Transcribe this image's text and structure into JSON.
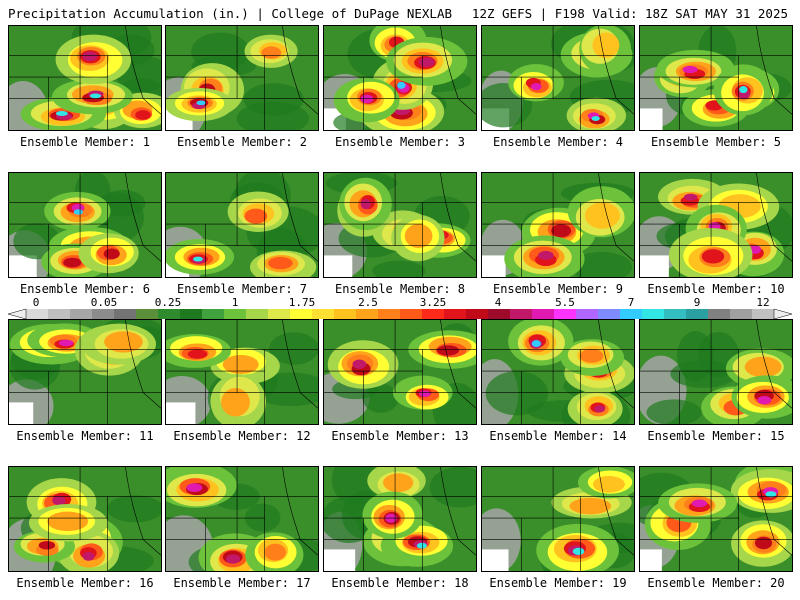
{
  "header": {
    "title": "Precipitation Accumulation (in.) | College of DuPage NEXLAB",
    "run_info": "12Z GEFS | F198 Valid: 18Z SAT MAY 31 2025"
  },
  "colorbar": {
    "labels": [
      "0",
      "0.05",
      "0.25",
      "1",
      "1.75",
      "2.5",
      "3.25",
      "4",
      "5.5",
      "7",
      "9",
      "12"
    ],
    "colors": [
      "#d9d9d9",
      "#bfbfbf",
      "#a6a6a6",
      "#8c8c8c",
      "#737373",
      "#5c8f3a",
      "#2e8b2e",
      "#1f7a1f",
      "#3fa23f",
      "#6cc23a",
      "#a6d64a",
      "#dfe84a",
      "#ffff33",
      "#ffe033",
      "#ffc21f",
      "#ffa31a",
      "#ff7f1a",
      "#ff5a1a",
      "#ff2a1a",
      "#e0141a",
      "#c00a1a",
      "#9e0a2a",
      "#c2186a",
      "#e01ab0",
      "#ff33ff",
      "#b066ff",
      "#7f8cff",
      "#33ccff",
      "#33e6e6",
      "#33bfbf",
      "#2aa0a0",
      "#808080",
      "#a0a0a0",
      "#c0c0c0"
    ]
  },
  "members": [
    {
      "label": "Ensemble Member: 1"
    },
    {
      "label": "Ensemble Member: 2"
    },
    {
      "label": "Ensemble Member: 3"
    },
    {
      "label": "Ensemble Member: 4"
    },
    {
      "label": "Ensemble Member: 5"
    },
    {
      "label": "Ensemble Member: 6"
    },
    {
      "label": "Ensemble Member: 7"
    },
    {
      "label": "Ensemble Member: 8"
    },
    {
      "label": "Ensemble Member: 9"
    },
    {
      "label": "Ensemble Member: 10"
    },
    {
      "label": "Ensemble Member: 11"
    },
    {
      "label": "Ensemble Member: 12"
    },
    {
      "label": "Ensemble Member: 13"
    },
    {
      "label": "Ensemble Member: 14"
    },
    {
      "label": "Ensemble Member: 15"
    },
    {
      "label": "Ensemble Member: 16"
    },
    {
      "label": "Ensemble Member: 17"
    },
    {
      "label": "Ensemble Member: 18"
    },
    {
      "label": "Ensemble Member: 19"
    },
    {
      "label": "Ensemble Member: 20"
    }
  ]
}
